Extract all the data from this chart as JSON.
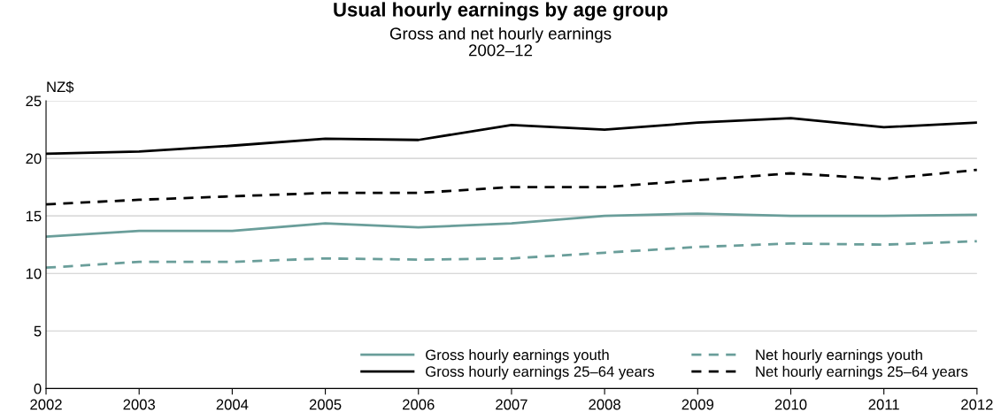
{
  "chart_data": {
    "type": "line",
    "title": "Usual hourly earnings by age group",
    "subtitle": "Gross and net hourly earnings\n2002–12",
    "ylabel": "NZ$",
    "x": [
      2002,
      2003,
      2004,
      2005,
      2006,
      2007,
      2008,
      2009,
      2010,
      2011,
      2012
    ],
    "series": [
      {
        "name": "Gross hourly earnings youth",
        "color": "#6a9e9a",
        "line_style": "solid",
        "values": [
          13.2,
          13.7,
          13.7,
          14.35,
          14.0,
          14.35,
          15.0,
          15.2,
          15.0,
          15.0,
          15.1
        ]
      },
      {
        "name": "Gross hourly earnings 25–64 years",
        "color": "#000000",
        "line_style": "solid",
        "values": [
          20.4,
          20.6,
          21.1,
          21.7,
          21.6,
          22.9,
          22.5,
          23.1,
          23.5,
          22.7,
          23.1
        ]
      },
      {
        "name": "Net hourly earnings youth",
        "color": "#6a9e9a",
        "line_style": "dashed",
        "values": [
          10.5,
          11.0,
          11.0,
          11.3,
          11.2,
          11.3,
          11.8,
          12.3,
          12.6,
          12.5,
          12.8
        ]
      },
      {
        "name": "Net hourly earnings 25–64 years",
        "color": "#000000",
        "line_style": "dashed",
        "values": [
          16.0,
          16.4,
          16.7,
          17.0,
          17.0,
          17.5,
          17.5,
          18.1,
          18.7,
          18.2,
          19.0
        ]
      }
    ],
    "xlim": [
      2002,
      2012
    ],
    "xticks": [
      2002,
      2003,
      2004,
      2005,
      2006,
      2007,
      2008,
      2009,
      2010,
      2011,
      2012
    ],
    "ylim": [
      0,
      25
    ],
    "yticks": [
      0,
      5,
      10,
      15,
      20,
      25
    ],
    "grid": "y",
    "legend": "bottom right",
    "marker": "none"
  }
}
